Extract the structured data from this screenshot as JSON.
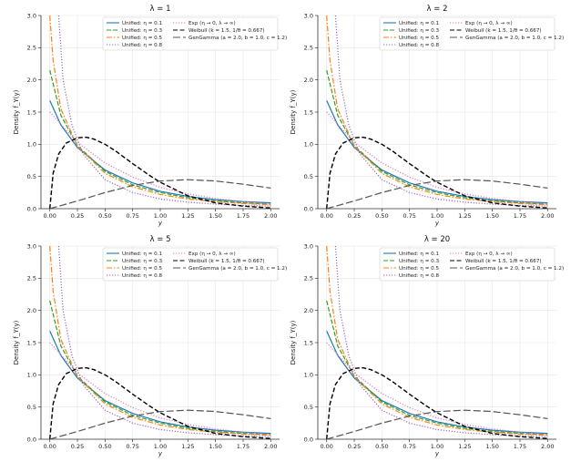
{
  "chart_data": {
    "type": "line",
    "title_prefix": "λ = ",
    "xlabel": "y",
    "ylabel": "Density f_Y(y)",
    "xlim": [
      -0.08,
      2.08
    ],
    "ylim": [
      0,
      3.0
    ],
    "xticks": [
      0.0,
      0.25,
      0.5,
      0.75,
      1.0,
      1.25,
      1.5,
      1.75,
      2.0
    ],
    "xtick_labels": [
      "0.00",
      "0.25",
      "0.50",
      "0.75",
      "1.00",
      "1.25",
      "1.50",
      "1.75",
      "2.00"
    ],
    "yticks": [
      0.0,
      0.5,
      1.0,
      1.5,
      2.0,
      2.5,
      3.0
    ],
    "ytick_labels": [
      "0.0",
      "0.5",
      "1.0",
      "1.5",
      "2.0",
      "2.5",
      "3.0"
    ],
    "grid": true,
    "legend_position": "top-right",
    "panels": [
      {
        "title": "λ = 1",
        "lambda": 1
      },
      {
        "title": "λ = 2",
        "lambda": 2
      },
      {
        "title": "λ = 5",
        "lambda": 5
      },
      {
        "title": "λ = 20",
        "lambda": 20
      }
    ],
    "series": [
      {
        "key": "eta01",
        "name": "Unified: η = 0.1",
        "color": "#1f77b4",
        "dash": "",
        "x": [
          0.0,
          0.1,
          0.25,
          0.5,
          0.75,
          1.0,
          1.25,
          1.5,
          1.75,
          2.0
        ],
        "y": [
          1.68,
          1.3,
          0.95,
          0.6,
          0.4,
          0.27,
          0.19,
          0.14,
          0.11,
          0.09
        ]
      },
      {
        "key": "eta03",
        "name": "Unified: η = 0.3",
        "color": "#2ca02c",
        "dash": "5,2",
        "x": [
          0.0,
          0.1,
          0.25,
          0.5,
          0.75,
          1.0,
          1.25,
          1.5,
          1.75,
          2.0
        ],
        "y": [
          2.15,
          1.45,
          0.98,
          0.58,
          0.37,
          0.25,
          0.17,
          0.12,
          0.09,
          0.07
        ]
      },
      {
        "key": "eta05",
        "name": "Unified: η = 0.5",
        "color": "#ff7f0e",
        "dash": "6,2,1.5,2",
        "x": [
          0.0,
          0.03,
          0.1,
          0.25,
          0.5,
          0.75,
          1.0,
          1.25,
          1.5,
          1.75,
          2.0
        ],
        "y": [
          3.0,
          2.3,
          1.55,
          0.97,
          0.55,
          0.34,
          0.22,
          0.15,
          0.11,
          0.08,
          0.06
        ]
      },
      {
        "key": "eta08",
        "name": "Unified: η = 0.8",
        "color": "#9467bd",
        "dash": "1.2,1.8",
        "x": [
          0.08,
          0.12,
          0.2,
          0.3,
          0.5,
          0.75,
          1.0,
          1.25,
          1.5,
          1.75,
          2.0
        ],
        "y": [
          3.0,
          2.0,
          1.3,
          0.85,
          0.45,
          0.25,
          0.15,
          0.1,
          0.07,
          0.05,
          0.04
        ]
      },
      {
        "key": "exp",
        "name": "Exp (η → 0,  λ → ∞)",
        "color": "#e377c2",
        "dash": "1.2,1.8",
        "x": [
          0.0,
          0.25,
          0.5,
          0.75,
          1.0,
          1.25,
          1.5,
          1.75,
          2.0
        ],
        "y": [
          1.5,
          1.03,
          0.71,
          0.49,
          0.33,
          0.23,
          0.16,
          0.11,
          0.07
        ]
      },
      {
        "key": "weibull",
        "name": "Weibull (k = 1.5, 1/θ = 0.667)",
        "color": "#000000",
        "dash": "5,2.5",
        "x": [
          0.0,
          0.03,
          0.08,
          0.15,
          0.25,
          0.33,
          0.4,
          0.5,
          0.6,
          0.75,
          0.9,
          1.0,
          1.25,
          1.5,
          1.75,
          2.0
        ],
        "y": [
          0.0,
          0.55,
          0.85,
          1.02,
          1.1,
          1.11,
          1.08,
          1.0,
          0.89,
          0.7,
          0.52,
          0.41,
          0.2,
          0.09,
          0.04,
          0.01
        ]
      },
      {
        "key": "gengamma",
        "name": "GenGamma (a = 2.0, b = 1.0, c = 1.2)",
        "color": "#555555",
        "dash": "8,3",
        "x": [
          0.0,
          0.25,
          0.5,
          0.75,
          1.0,
          1.25,
          1.5,
          1.75,
          2.0
        ],
        "y": [
          0.0,
          0.12,
          0.25,
          0.36,
          0.43,
          0.45,
          0.43,
          0.38,
          0.32
        ]
      }
    ]
  }
}
